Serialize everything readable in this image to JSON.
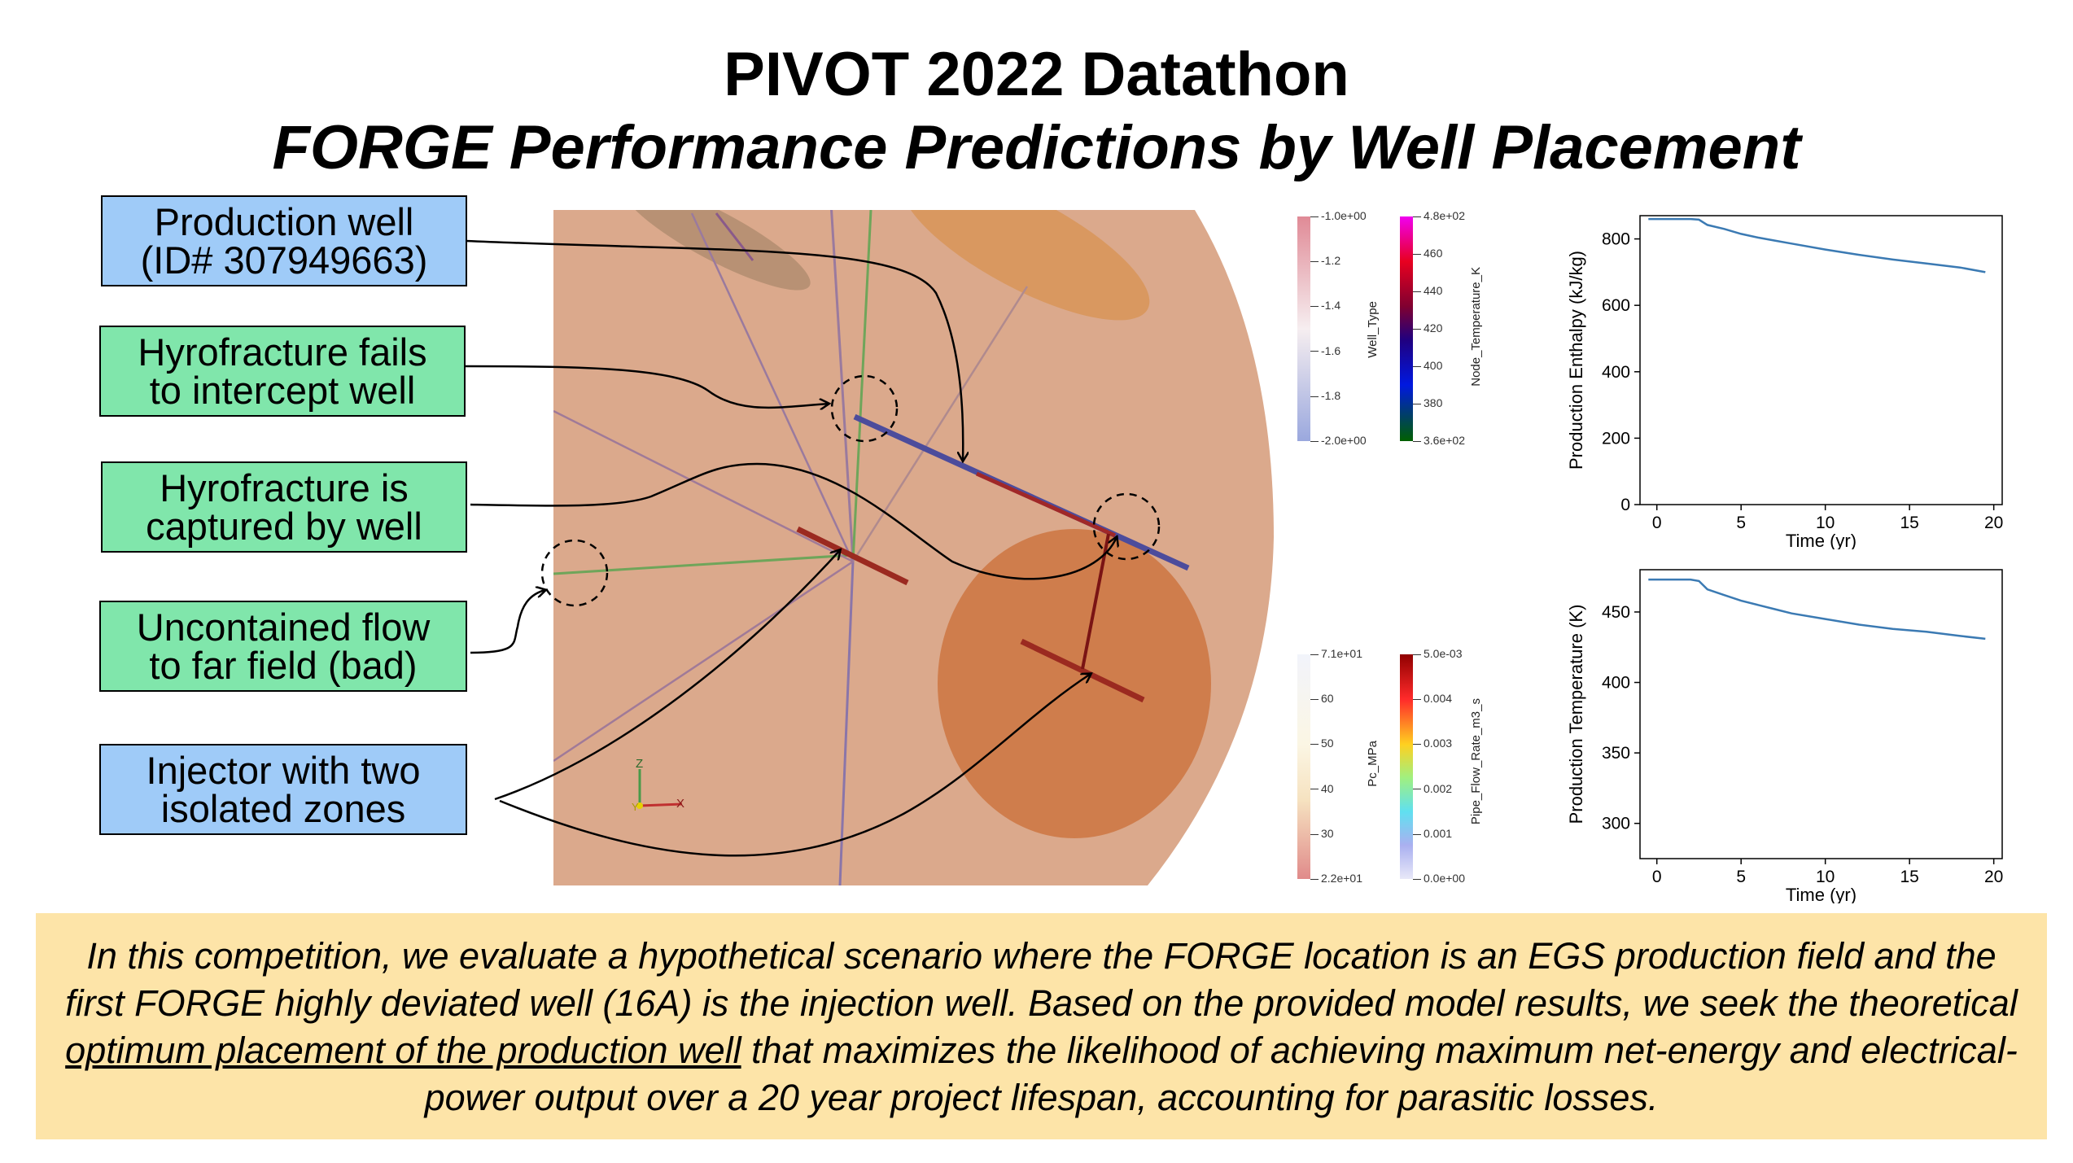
{
  "title": "PIVOT 2022 Datathon",
  "subtitle": "FORGE Performance Predictions by Well Placement",
  "callouts": {
    "production_well": [
      "Production well",
      "(ID# 307949663)"
    ],
    "fails": [
      "Hyrofracture fails",
      "to intercept well"
    ],
    "captured": [
      "Hyrofracture is",
      "captured by well"
    ],
    "uncontained": [
      "Uncontained flow",
      "to far field (bad)"
    ],
    "injector": [
      "Injector with two",
      "isolated zones"
    ]
  },
  "colorbars": {
    "well_type": {
      "title": "Well_Type",
      "ticks": [
        "-1.0e+00",
        "-1.2",
        "-1.4",
        "-1.6",
        "-1.8",
        "-2.0e+00"
      ]
    },
    "node_temp": {
      "title": "Node_Temperature_K",
      "ticks": [
        "4.8e+02",
        "460",
        "440",
        "420",
        "400",
        "380",
        "3.6e+02"
      ]
    },
    "pc": {
      "title": "Pc_MPa",
      "ticks": [
        "7.1e+01",
        "60",
        "50",
        "40",
        "30",
        "2.2e+01"
      ]
    },
    "flow": {
      "title": "Pipe_Flow_Rate_m3_s",
      "ticks": [
        "5.0e-03",
        "0.004",
        "0.003",
        "0.002",
        "0.001",
        "0.0e+00"
      ]
    }
  },
  "axes_triad": {
    "z": "Z",
    "x": "X",
    "y": "Y"
  },
  "chart_data": [
    {
      "type": "line",
      "xlabel": "Time (yr)",
      "ylabel": "Production Enthalpy (kJ/kg)",
      "xlim": [
        -1,
        20.5
      ],
      "ylim": [
        0,
        870
      ],
      "xticks": [
        0,
        5,
        10,
        15,
        20
      ],
      "yticks": [
        0,
        200,
        400,
        600,
        800
      ],
      "color": "#3b7ab3",
      "x": [
        -0.5,
        0,
        1,
        2,
        2.5,
        3,
        4,
        5,
        6,
        7,
        8,
        10,
        12,
        14,
        16,
        18,
        19.5
      ],
      "y": [
        860,
        860,
        860,
        860,
        858,
        842,
        830,
        815,
        804,
        795,
        786,
        768,
        752,
        738,
        726,
        714,
        700
      ]
    },
    {
      "type": "line",
      "xlabel": "Time (yr)",
      "ylabel": "Production Temperature (K)",
      "xlim": [
        -1,
        20.5
      ],
      "ylim": [
        275,
        480
      ],
      "xticks": [
        0,
        5,
        10,
        15,
        20
      ],
      "yticks": [
        300,
        350,
        400,
        450
      ],
      "color": "#3b7ab3",
      "x": [
        -0.5,
        0,
        1,
        2,
        2.5,
        3,
        4,
        5,
        6,
        7,
        8,
        10,
        12,
        14,
        16,
        18,
        19.5
      ],
      "y": [
        473,
        473,
        473,
        473,
        472,
        466,
        462,
        458,
        455,
        452,
        449,
        445,
        441,
        438,
        436,
        433,
        431
      ]
    }
  ],
  "bottom_text": {
    "part1": "In this competition, we evaluate a hypothetical scenario where the FORGE location is an EGS production field and the first FORGE highly deviated well (16A) is the injection well. Based on the provided model results, we seek the theoretical ",
    "underlined": "optimum placement of the production well",
    "part2": " that maximizes the likelihood of achieving maximum net-energy and electrical-power output over a 20 year project lifespan, accounting for parasitic losses."
  },
  "colors": {
    "scene_bg": "#dba98c",
    "frac_ellipse": "#cf7d4c",
    "blue_callout": "#9fcbf8",
    "green_callout": "#80e6ab",
    "bottom_box": "#fde4a8",
    "curve": "#3b7ab3"
  }
}
